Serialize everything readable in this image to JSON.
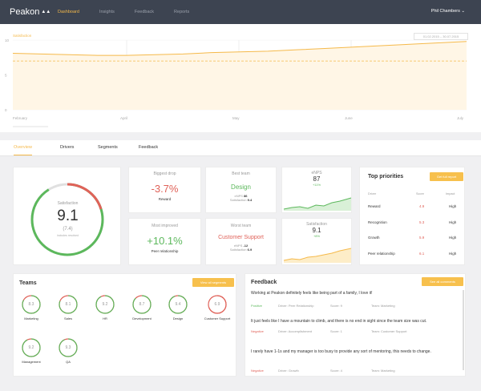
{
  "header": {
    "brand": "Peakon",
    "nav": [
      "Dashboard",
      "Insights",
      "Feedback",
      "Reports"
    ],
    "user": "Phil Chambers",
    "user_chevron": "⌄"
  },
  "trend": {
    "legend": "Satisfaction",
    "date_range": "01.02.2015 – 30.07.2015",
    "y_ticks": [
      "10",
      "5",
      "0"
    ],
    "x_ticks": [
      "February",
      "April",
      "May",
      "June",
      "July"
    ],
    "values": [
      8.1,
      8.0,
      7.9,
      7.8,
      7.8,
      7.9,
      8.0,
      8.2,
      8.3,
      8.4,
      8.6,
      8.8,
      9.0,
      9.2,
      9.4,
      9.6,
      9.8
    ],
    "benchmark": 7.0,
    "ylim": [
      0,
      10
    ],
    "color": "#f5b94a"
  },
  "tabs": [
    "Overview",
    "Drivers",
    "Segments",
    "Feedback"
  ],
  "satisfaction": {
    "label": "Satisfaction",
    "value": "9.1",
    "prev": "(7.4)",
    "note": "includes resolved",
    "fraction": 0.91
  },
  "biggest_drop": {
    "title": "Biggest drop",
    "value": "-3.7%",
    "label": "Reward"
  },
  "best_team": {
    "title": "Best team",
    "name": "Design",
    "enps_label": "eNPS",
    "enps": "86",
    "sat_label": "Satisfaction",
    "sat": "9.4"
  },
  "enps_card": {
    "title": "eNPS",
    "value": "87",
    "change": "+11%"
  },
  "most_improved": {
    "title": "Most improved",
    "value": "+10.1%",
    "label": "Peer relationship"
  },
  "worst_team": {
    "title": "Worst team",
    "name": "Customer Support",
    "enps_label": "eNPS",
    "enps": "-12",
    "sat_label": "Satisfaction",
    "sat": "6.9"
  },
  "sat_card": {
    "title": "Satisfaction",
    "value": "9.1",
    "change": "+8%"
  },
  "priorities": {
    "title": "Top priorities",
    "button": "Get full report",
    "cols": [
      "Driver",
      "Score",
      "Impact"
    ],
    "rows": [
      {
        "driver": "Reward",
        "score": "4.9",
        "impact": "High"
      },
      {
        "driver": "Recognition",
        "score": "5.3",
        "impact": "High"
      },
      {
        "driver": "Growth",
        "score": "5.9",
        "impact": "High"
      },
      {
        "driver": "Peer relationship",
        "score": "6.1",
        "impact": "High"
      }
    ]
  },
  "teams": {
    "title": "Teams",
    "button": "View all segments",
    "items": [
      {
        "name": "Marketing",
        "score": "8.3"
      },
      {
        "name": "Sales",
        "score": "8.1"
      },
      {
        "name": "HR",
        "score": "9.2"
      },
      {
        "name": "Development",
        "score": "8.7"
      },
      {
        "name": "Design",
        "score": "9.4"
      },
      {
        "name": "Customer Support",
        "score": "6.9"
      },
      {
        "name": "Management",
        "score": "9.2"
      },
      {
        "name": "QA",
        "score": "9.3"
      }
    ]
  },
  "feedback": {
    "title": "Feedback",
    "button": "See all comments",
    "items": [
      {
        "text": "Working at Peakon definitely feels like being part of a family, I love it!",
        "sentiment": "Positive",
        "driver": "Driver: Peer Relationship",
        "score": "Score: 9",
        "team": "Team: Marketing"
      },
      {
        "text": "It just feels like I have a mountain to climb, and there is no end in sight since the team size was cut.",
        "sentiment": "Negative",
        "driver": "Driver: Accomplishment",
        "score": "Score: 1",
        "team": "Team: Customer Support"
      },
      {
        "text": "I rarely have 1-1s and my manager is too busy to provide any sort of mentoring, this needs to change.",
        "sentiment": "Negative",
        "driver": "Driver: Growth",
        "score": "Score: 4",
        "team": "Team: Marketing"
      }
    ]
  }
}
